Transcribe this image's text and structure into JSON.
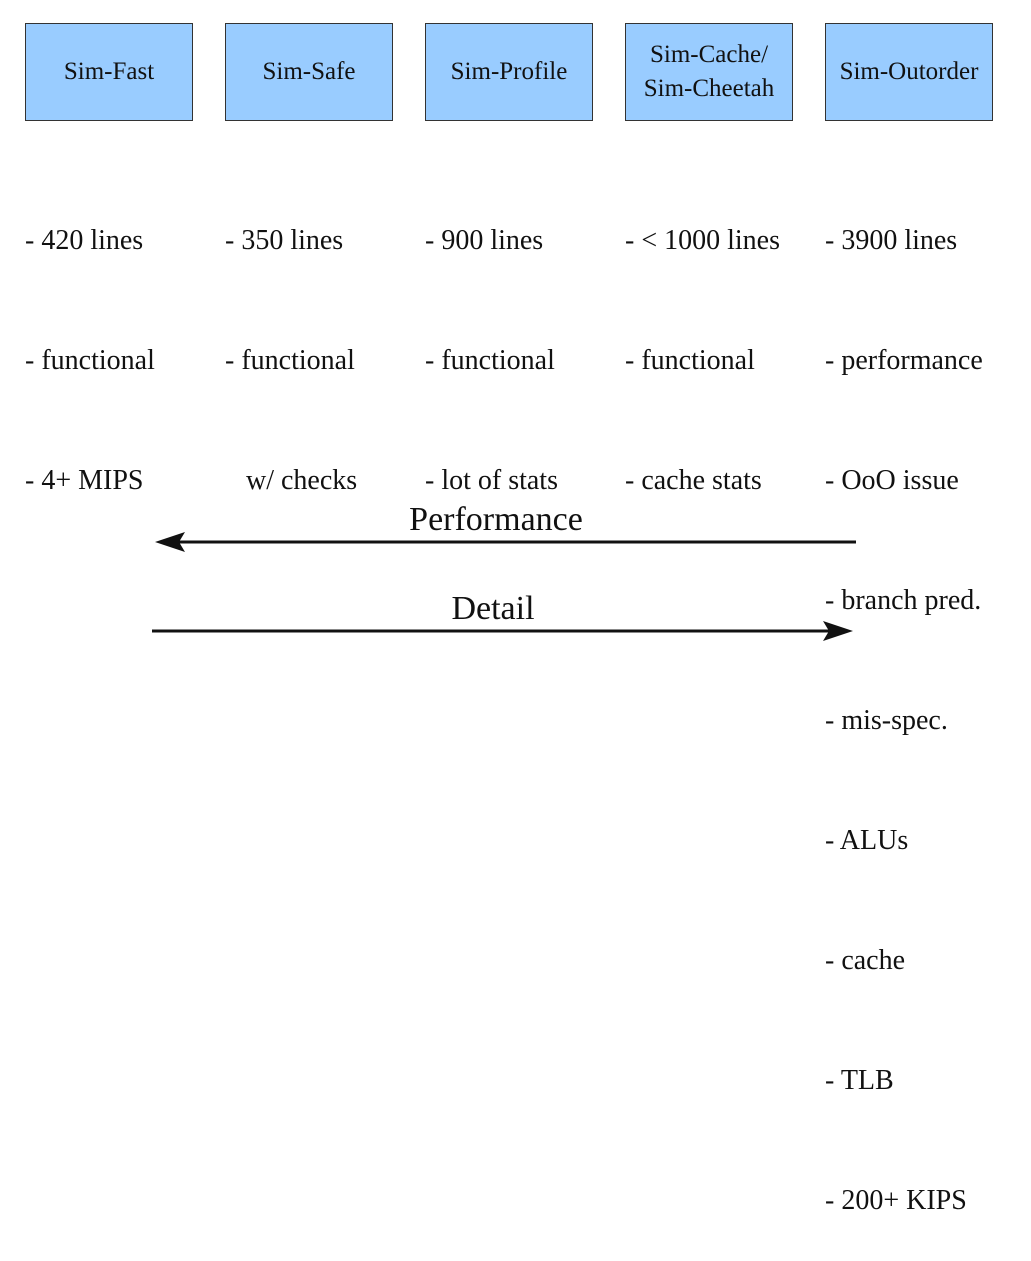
{
  "simulators": [
    {
      "id": "fast",
      "name": "Sim-Fast",
      "features": [
        "- 420 lines",
        "- functional",
        "- 4+ MIPS"
      ]
    },
    {
      "id": "safe",
      "name": "Sim-Safe",
      "features": [
        "- 350 lines",
        "- functional",
        "   w/ checks"
      ]
    },
    {
      "id": "profile",
      "name": "Sim-Profile",
      "features": [
        "- 900 lines",
        "- functional",
        "- lot of stats"
      ]
    },
    {
      "id": "cache",
      "name": "Sim-Cache/\nSim-Cheetah",
      "features": [
        "- < 1000 lines",
        "- functional",
        "- cache stats"
      ]
    },
    {
      "id": "outorder",
      "name": "Sim-Outorder",
      "features": [
        "- 3900 lines",
        "- performance",
        "- OoO issue",
        "- branch pred.",
        "- mis-spec.",
        "- ALUs",
        "- cache",
        "- TLB",
        "- 200+ KIPS"
      ]
    }
  ],
  "axes": {
    "performance": {
      "label": "Performance",
      "direction": "left"
    },
    "detail": {
      "label": "Detail",
      "direction": "right"
    }
  },
  "colors": {
    "box_fill": "#99ccff",
    "box_border": "#333333",
    "arrow": "#111111"
  }
}
